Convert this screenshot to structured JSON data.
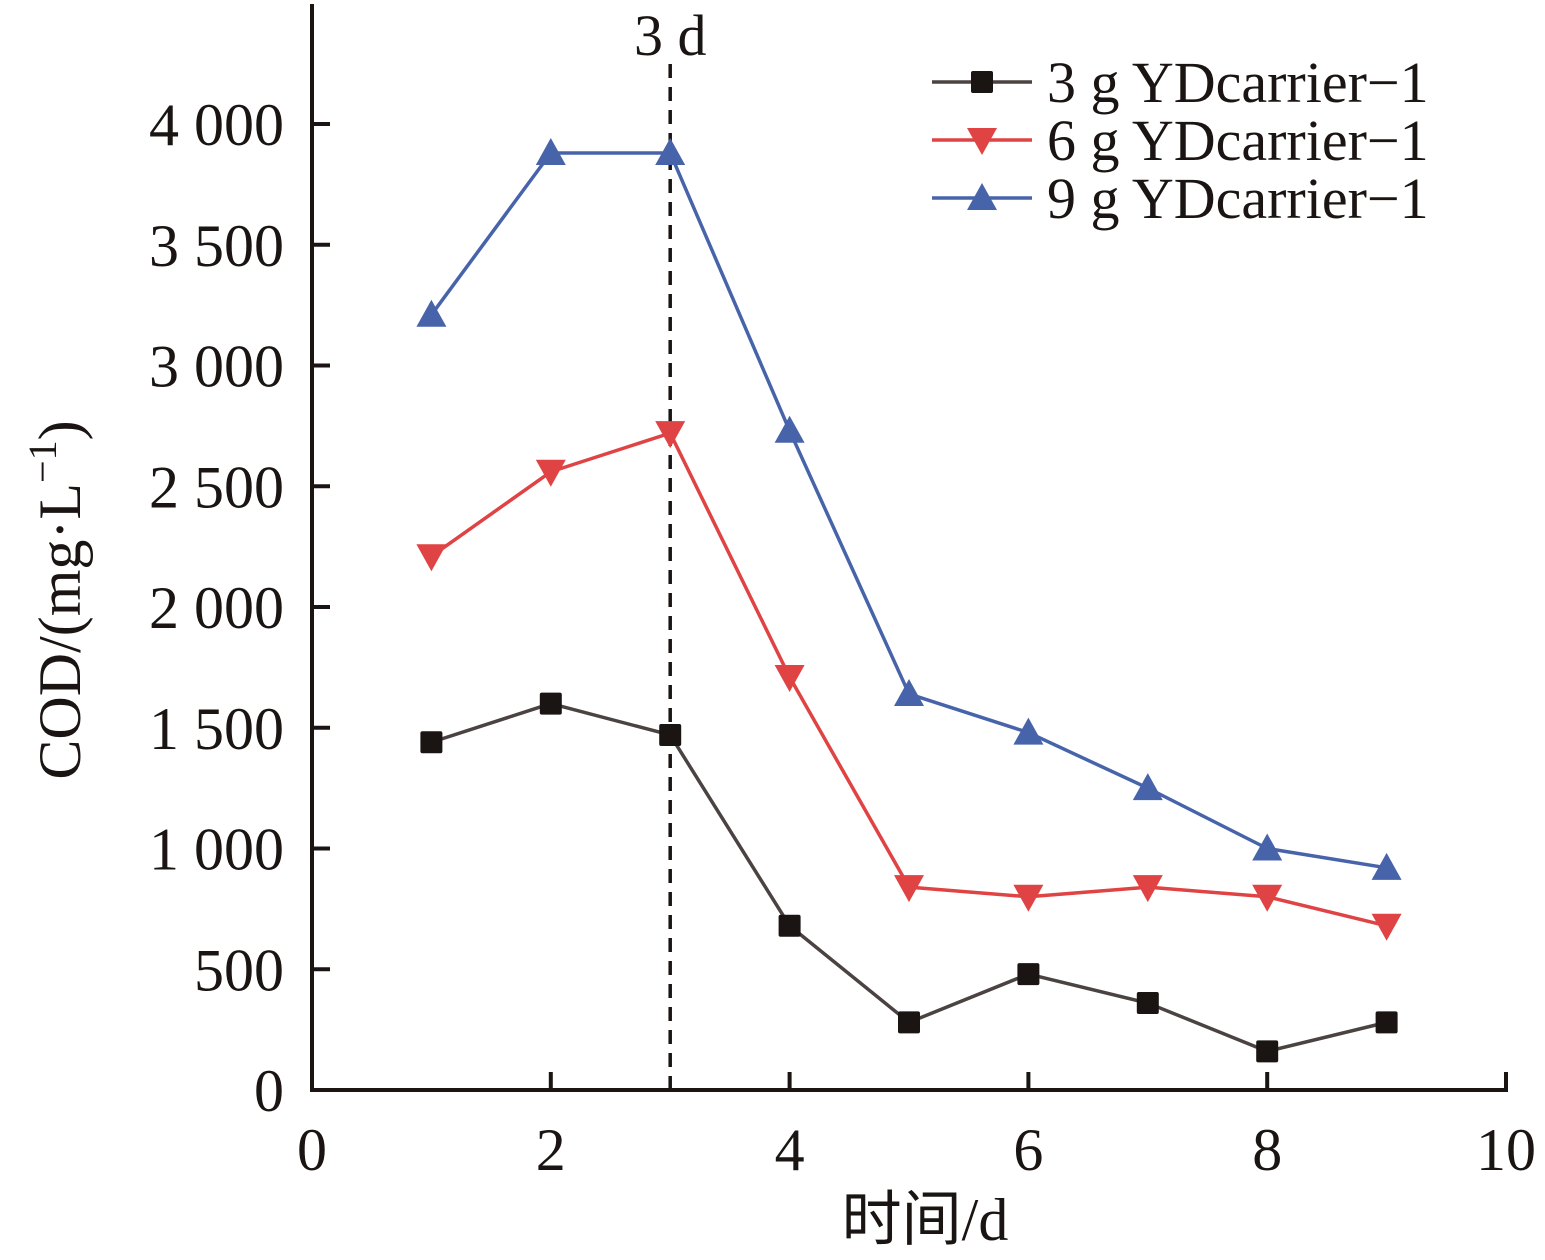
{
  "chart_data": {
    "type": "line",
    "title": "",
    "xlabel": "时间/d",
    "ylabel": "COD/(mg·L⁻¹)",
    "ylabel_parts": {
      "main": "COD/(mg·L",
      "sup": "−1",
      "close": ")"
    },
    "xlim": [
      0,
      10
    ],
    "ylim": [
      0,
      4000
    ],
    "x_ticks": [
      0,
      2,
      4,
      6,
      8,
      10
    ],
    "x_tick_labels": [
      "0",
      "2",
      "4",
      "6",
      "8",
      "10"
    ],
    "y_ticks": [
      0,
      500,
      1000,
      1500,
      2000,
      2500,
      3000,
      3500,
      4000
    ],
    "y_tick_labels": [
      "0",
      "500",
      "1 000",
      "1 500",
      "2 000",
      "2 500",
      "3 000",
      "3 500",
      "4 000"
    ],
    "grid": false,
    "legend_position": "top-right",
    "x": [
      1,
      2,
      3,
      4,
      5,
      6,
      7,
      8,
      9
    ],
    "series": [
      {
        "name": "3 g YDcarrier−1",
        "marker": "square",
        "line_color": "#4a4341",
        "marker_color": "#1a1512",
        "values": [
          1440,
          1600,
          1470,
          680,
          280,
          480,
          360,
          160,
          280
        ]
      },
      {
        "name": "6 g YDcarrier−1",
        "marker": "triangle-down",
        "line_color": "#e04343",
        "marker_color": "#e04343",
        "values": [
          2210,
          2560,
          2720,
          1710,
          840,
          800,
          840,
          800,
          680
        ]
      },
      {
        "name": "9 g YDcarrier−1",
        "marker": "triangle-up",
        "line_color": "#4764ab",
        "marker_color": "#4764ab",
        "values": [
          3210,
          3880,
          3880,
          2730,
          1640,
          1480,
          1250,
          1000,
          920
        ]
      }
    ],
    "annotations": [
      {
        "type": "vline",
        "x": 3,
        "style": "dashed",
        "color": "#1a1512",
        "label": "3 d"
      }
    ]
  }
}
